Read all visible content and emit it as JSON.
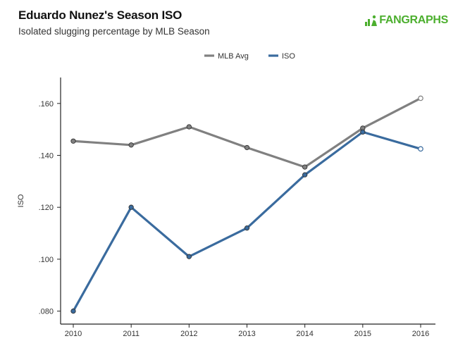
{
  "logo": {
    "text": "FANGRAPHS",
    "color": "#4caf2e"
  },
  "chart_data": {
    "type": "line",
    "title": "Eduardo Nunez's Season ISO",
    "subtitle": "Isolated slugging percentage by MLB Season",
    "xlabel": "",
    "ylabel": "ISO",
    "categories": [
      "2010",
      "2011",
      "2012",
      "2013",
      "2014",
      "2015",
      "2016"
    ],
    "ylim": [
      0.075,
      0.17
    ],
    "yticks": [
      0.08,
      0.1,
      0.12,
      0.14,
      0.16
    ],
    "ytick_labels": [
      ".080",
      ".100",
      ".120",
      ".140",
      ".160"
    ],
    "legend_position": "top-center",
    "series": [
      {
        "name": "MLB Avg",
        "color": "#808080",
        "values": [
          0.1455,
          0.144,
          0.151,
          0.143,
          0.1355,
          0.1505,
          0.162
        ]
      },
      {
        "name": "ISO",
        "color": "#3a6b9e",
        "values": [
          0.08,
          0.12,
          0.101,
          0.112,
          0.1325,
          0.149,
          0.1425
        ]
      }
    ]
  }
}
